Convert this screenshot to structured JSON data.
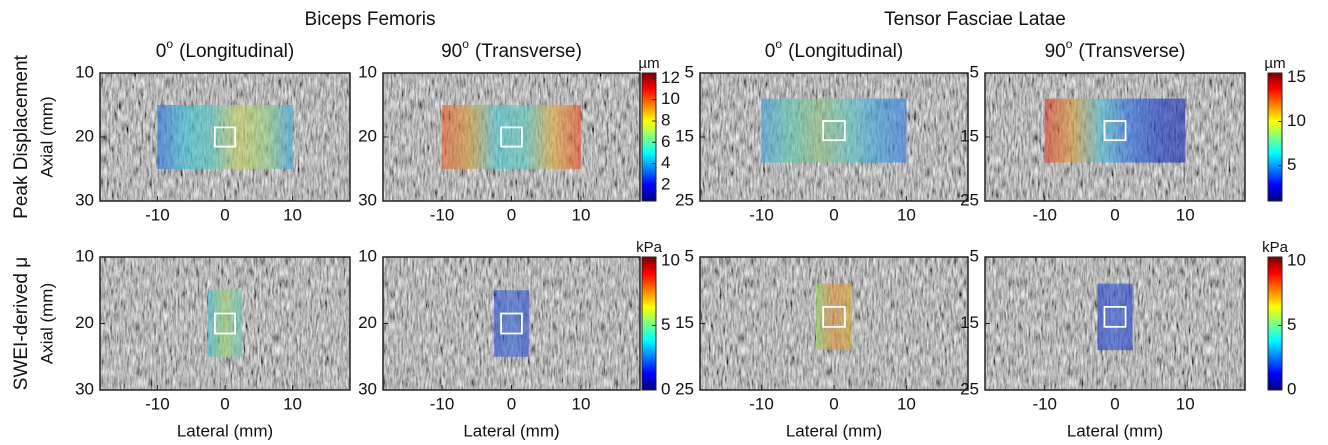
{
  "groups": [
    {
      "title": "Biceps Femoris"
    },
    {
      "title": "Tensor Fasciae Latae"
    }
  ],
  "columns": [
    {
      "angle": "0",
      "degree": "o",
      "view": "(Longitudinal)",
      "x_label": "Lateral (mm)"
    },
    {
      "angle": "90",
      "degree": "o",
      "view": "(Transverse)",
      "x_label": "Lateral (mm)"
    },
    {
      "angle": "0",
      "degree": "o",
      "view": "(Longitudinal)",
      "x_label": "Lateral (mm)"
    },
    {
      "angle": "90",
      "degree": "o",
      "view": "(Transverse)",
      "x_label": "Lateral (mm)"
    }
  ],
  "rows": [
    {
      "label": "Peak Displacement",
      "y_label": "Axial (mm)"
    },
    {
      "label": "SWEI-derived μ",
      "y_label": "Axial (mm)"
    }
  ],
  "colormap": [
    "#00007f",
    "#0000ff",
    "#0080ff",
    "#00ffff",
    "#80ff80",
    "#ffff00",
    "#ff8000",
    "#ff0000",
    "#7f0000"
  ],
  "panels": [
    {
      "xlim": [
        -18.5,
        18.5
      ],
      "ylim": [
        30,
        10
      ],
      "xticks": [
        -10,
        0,
        10
      ],
      "yticks": [
        10,
        20,
        30
      ],
      "roi": {
        "x": [
          -10,
          10
        ],
        "y": [
          15,
          25
        ]
      },
      "box": {
        "x": [
          -1.5,
          1.5
        ],
        "y": [
          18.5,
          21.5
        ]
      },
      "overlay": [
        "#2f6fe0",
        "#3bc0d8",
        "#58c8c0",
        "#c8d060",
        "#9ad080",
        "#3aa8e0"
      ]
    },
    {
      "xlim": [
        -18.5,
        18.5
      ],
      "ylim": [
        30,
        10
      ],
      "xticks": [
        -10,
        0,
        10
      ],
      "yticks": [
        10,
        20,
        30
      ],
      "roi": {
        "x": [
          -10,
          10
        ],
        "y": [
          15,
          25
        ]
      },
      "box": {
        "x": [
          -1.5,
          1.5
        ],
        "y": [
          18.5,
          21.5
        ]
      },
      "overlay": [
        "#e86030",
        "#d0a040",
        "#50c8d0",
        "#60c8c0",
        "#e0b040",
        "#e85030"
      ]
    },
    {
      "xlim": [
        -18.5,
        18.5
      ],
      "ylim": [
        25,
        5
      ],
      "xticks": [
        -10,
        0,
        10
      ],
      "yticks": [
        5,
        15,
        25
      ],
      "roi": {
        "x": [
          -10,
          10
        ],
        "y": [
          9,
          19
        ]
      },
      "box": {
        "x": [
          -1.5,
          1.5
        ],
        "y": [
          12.5,
          15.5
        ]
      },
      "overlay": [
        "#40a0e0",
        "#60c8b0",
        "#90c080",
        "#60c8c0",
        "#40a0e0",
        "#3a80e0"
      ]
    },
    {
      "xlim": [
        -18.5,
        18.5
      ],
      "ylim": [
        25,
        5
      ],
      "xticks": [
        -10,
        0,
        10
      ],
      "yticks": [
        5,
        15,
        25
      ],
      "roi": {
        "x": [
          -10,
          10
        ],
        "y": [
          9,
          19
        ]
      },
      "box": {
        "x": [
          -1.5,
          1.5
        ],
        "y": [
          12.5,
          15.5
        ]
      },
      "overlay": [
        "#e04030",
        "#d8a040",
        "#50c0d0",
        "#3070e0",
        "#2040c8",
        "#2030b0"
      ]
    },
    {
      "xlim": [
        -18.5,
        18.5
      ],
      "ylim": [
        30,
        10
      ],
      "xticks": [
        -10,
        0,
        10
      ],
      "yticks": [
        10,
        20,
        30
      ],
      "roi": {
        "x": [
          -2.5,
          2.5
        ],
        "y": [
          15,
          25
        ]
      },
      "box": {
        "x": [
          -1.5,
          1.5
        ],
        "y": [
          18.5,
          21.5
        ]
      },
      "overlay": [
        "#40c0d8",
        "#a0d070",
        "#60c8c0"
      ]
    },
    {
      "xlim": [
        -18.5,
        18.5
      ],
      "ylim": [
        30,
        10
      ],
      "xticks": [
        -10,
        0,
        10
      ],
      "yticks": [
        10,
        20,
        30
      ],
      "roi": {
        "x": [
          -2.5,
          2.5
        ],
        "y": [
          15,
          25
        ]
      },
      "box": {
        "x": [
          -1.5,
          1.5
        ],
        "y": [
          18.5,
          21.5
        ]
      },
      "overlay": [
        "#3050d0",
        "#4070d8",
        "#3050d0"
      ]
    },
    {
      "xlim": [
        -18.5,
        18.5
      ],
      "ylim": [
        25,
        5
      ],
      "xticks": [
        -10,
        0,
        10
      ],
      "yticks": [
        5,
        15,
        25
      ],
      "roi": {
        "x": [
          -2.5,
          2.5
        ],
        "y": [
          9,
          19
        ]
      },
      "box": {
        "x": [
          -1.5,
          1.5
        ],
        "y": [
          12.5,
          15.5
        ]
      },
      "overlay": [
        "#90d060",
        "#e09040",
        "#d0b040"
      ]
    },
    {
      "xlim": [
        -18.5,
        18.5
      ],
      "ylim": [
        25,
        5
      ],
      "xticks": [
        -10,
        0,
        10
      ],
      "yticks": [
        5,
        15,
        25
      ],
      "roi": {
        "x": [
          -2.5,
          2.5
        ],
        "y": [
          9,
          19
        ]
      },
      "box": {
        "x": [
          -1.5,
          1.5
        ],
        "y": [
          12.5,
          15.5
        ]
      },
      "overlay": [
        "#2840c8",
        "#3860d8",
        "#2840c8"
      ]
    }
  ],
  "colorbars": [
    {
      "unit": "µm",
      "lim": [
        0.5,
        12.5
      ],
      "ticks": [
        2,
        4,
        6,
        8,
        10,
        12
      ]
    },
    {
      "unit": "µm",
      "lim": [
        1,
        15.5
      ],
      "ticks": [
        5,
        10,
        15
      ]
    },
    {
      "unit": "kPa",
      "lim": [
        0,
        10.3
      ],
      "ticks": [
        0,
        5,
        10
      ]
    },
    {
      "unit": "kPa",
      "lim": [
        0,
        10.3
      ],
      "ticks": [
        0,
        5,
        10
      ]
    }
  ]
}
